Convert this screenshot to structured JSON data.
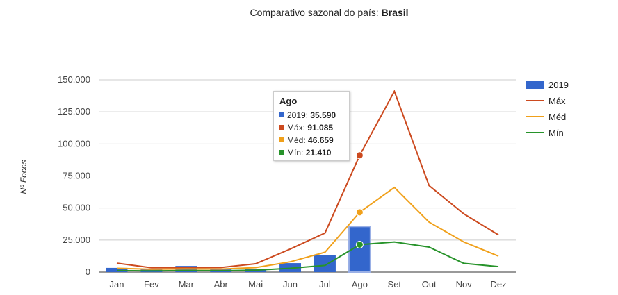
{
  "title": {
    "prefix": "Comparativo sazonal do país: ",
    "country": "Brasil"
  },
  "colors": {
    "bar2019": "#3366cc",
    "max": "#cc4a1f",
    "med": "#f0a01a",
    "min": "#27932a",
    "grid": "#cccccc",
    "axis": "#333333"
  },
  "chart_data": {
    "type": "bar",
    "ylabel": "Nº Focos",
    "ylim": [
      0,
      150000
    ],
    "yticks": [
      0,
      25000,
      50000,
      75000,
      100000,
      125000,
      150000
    ],
    "ytick_labels": [
      "0",
      "25.000",
      "50.000",
      "75.000",
      "100.000",
      "125.000",
      "150.000"
    ],
    "categories": [
      "Jan",
      "Fev",
      "Mar",
      "Abr",
      "Mai",
      "Jun",
      "Jul",
      "Ago",
      "Set",
      "Out",
      "Nov",
      "Dez"
    ],
    "grid": true,
    "legend_position": "right",
    "series": [
      {
        "name": "2019",
        "kind": "bar",
        "values": [
          3300,
          2000,
          4800,
          2100,
          2600,
          7000,
          13500,
          35590,
          null,
          null,
          null,
          null
        ]
      },
      {
        "name": "Máx",
        "kind": "line",
        "values": [
          7000,
          3400,
          3600,
          3600,
          6500,
          18000,
          30500,
          91085,
          141000,
          67500,
          45500,
          29000
        ]
      },
      {
        "name": "Méd",
        "kind": "line",
        "values": [
          3000,
          2200,
          2500,
          2400,
          3500,
          8000,
          15500,
          46659,
          66000,
          39000,
          23500,
          12500
        ]
      },
      {
        "name": "Mín",
        "kind": "line",
        "values": [
          1200,
          1000,
          1200,
          1100,
          1500,
          3000,
          5200,
          21410,
          23500,
          19500,
          6800,
          4300
        ]
      }
    ],
    "tooltip": {
      "category": "Ago",
      "rows": [
        {
          "name": "2019",
          "value": "35.590",
          "color": "#3366cc"
        },
        {
          "name": "Máx",
          "value": "91.085",
          "color": "#cc4a1f"
        },
        {
          "name": "Méd",
          "value": "46.659",
          "color": "#f0a01a"
        },
        {
          "name": "Mín",
          "value": "21.410",
          "color": "#27932a"
        }
      ]
    }
  }
}
